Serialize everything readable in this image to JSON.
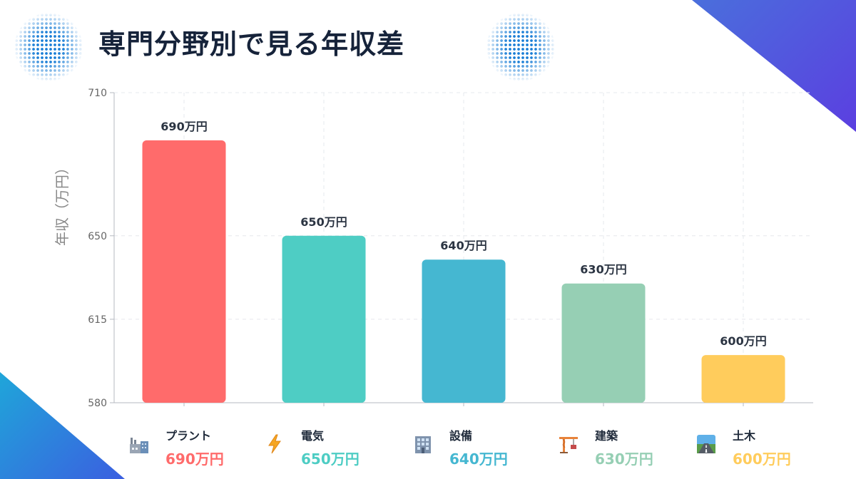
{
  "header": {
    "title": "専門分野別で見る年収差"
  },
  "colors": {
    "plant": "#ff6b6b",
    "electric": "#4ecdc4",
    "equipment": "#45b7d1",
    "construction": "#96cfb4",
    "civil": "#ffcc5c"
  },
  "chart_data": {
    "type": "bar",
    "ylabel": "年収（万円）",
    "xlabel": "",
    "ylim": [
      580,
      710
    ],
    "yticks": [
      580,
      615,
      650,
      710
    ],
    "grid": true,
    "categories": [
      "プラント",
      "電気",
      "設備",
      "建築",
      "土木"
    ],
    "values": [
      690,
      650,
      640,
      630,
      600
    ],
    "data_labels": [
      "690万円",
      "650万円",
      "640万円",
      "630万円",
      "600万円"
    ]
  },
  "legend": {
    "items": [
      {
        "name": "プラント",
        "value": "690万円",
        "icon": "factory-icon",
        "color": "#ff6b6b"
      },
      {
        "name": "電気",
        "value": "650万円",
        "icon": "lightning-icon",
        "color": "#4ecdc4"
      },
      {
        "name": "設備",
        "value": "640万円",
        "icon": "office-building-icon",
        "color": "#45b7d1"
      },
      {
        "name": "建築",
        "value": "630万円",
        "icon": "crane-icon",
        "color": "#96cfb4"
      },
      {
        "name": "土木",
        "value": "600万円",
        "icon": "road-icon",
        "color": "#ffcc5c"
      }
    ]
  }
}
